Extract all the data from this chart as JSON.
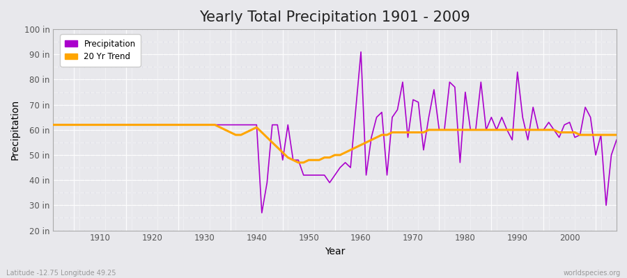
{
  "title": "Yearly Total Precipitation 1901 - 2009",
  "xlabel": "Year",
  "ylabel": "Precipitation",
  "ylim": [
    20,
    100
  ],
  "xlim": [
    1901,
    2009
  ],
  "ytick_labels": [
    "20 in",
    "30 in",
    "40 in",
    "50 in",
    "60 in",
    "70 in",
    "80 in",
    "90 in",
    "100 in"
  ],
  "ytick_values": [
    20,
    30,
    40,
    50,
    60,
    70,
    80,
    90,
    100
  ],
  "xtick_values": [
    1910,
    1920,
    1930,
    1940,
    1950,
    1960,
    1970,
    1980,
    1990,
    2000
  ],
  "precipitation_color": "#AA00CC",
  "trend_color": "#FFA500",
  "background_color": "#E8E8EC",
  "grid_color": "#FFFFFF",
  "precipitation_label": "Precipitation",
  "trend_label": "20 Yr Trend",
  "title_fontsize": 15,
  "axis_label_fontsize": 10,
  "watermark_left": "Latitude -12.75 Longitude 49.25",
  "watermark_right": "worldspecies.org",
  "years": [
    1901,
    1902,
    1903,
    1904,
    1905,
    1906,
    1907,
    1908,
    1909,
    1910,
    1911,
    1912,
    1913,
    1914,
    1915,
    1916,
    1917,
    1918,
    1919,
    1920,
    1921,
    1922,
    1923,
    1924,
    1925,
    1926,
    1927,
    1928,
    1929,
    1930,
    1931,
    1932,
    1933,
    1934,
    1935,
    1936,
    1937,
    1938,
    1939,
    1940,
    1941,
    1942,
    1943,
    1944,
    1945,
    1946,
    1947,
    1948,
    1949,
    1950,
    1951,
    1952,
    1953,
    1954,
    1955,
    1956,
    1957,
    1958,
    1959,
    1960,
    1961,
    1962,
    1963,
    1964,
    1965,
    1966,
    1967,
    1968,
    1969,
    1970,
    1971,
    1972,
    1973,
    1974,
    1975,
    1976,
    1977,
    1978,
    1979,
    1980,
    1981,
    1982,
    1983,
    1984,
    1985,
    1986,
    1987,
    1988,
    1989,
    1990,
    1991,
    1992,
    1993,
    1994,
    1995,
    1996,
    1997,
    1998,
    1999,
    2000,
    2001,
    2002,
    2003,
    2004,
    2005,
    2006,
    2007,
    2008,
    2009
  ],
  "precip_values": [
    62,
    62,
    62,
    62,
    62,
    62,
    62,
    62,
    62,
    62,
    62,
    62,
    62,
    62,
    62,
    62,
    62,
    62,
    62,
    62,
    62,
    62,
    62,
    62,
    62,
    62,
    62,
    62,
    62,
    62,
    62,
    62,
    62,
    62,
    62,
    62,
    62,
    62,
    62,
    62,
    27,
    39,
    62,
    62,
    48,
    62,
    48,
    48,
    42,
    42,
    42,
    42,
    42,
    39,
    42,
    45,
    47,
    45,
    68,
    91,
    42,
    57,
    65,
    67,
    42,
    65,
    68,
    79,
    57,
    72,
    71,
    52,
    65,
    76,
    60,
    60,
    79,
    77,
    47,
    75,
    60,
    60,
    79,
    60,
    65,
    60,
    65,
    60,
    56,
    83,
    65,
    56,
    69,
    60,
    60,
    63,
    60,
    57,
    62,
    63,
    57,
    58,
    69,
    65,
    50,
    58,
    30,
    50,
    56
  ],
  "trend_years": [
    1901,
    1902,
    1903,
    1904,
    1905,
    1906,
    1907,
    1908,
    1909,
    1910,
    1911,
    1912,
    1913,
    1914,
    1915,
    1916,
    1917,
    1918,
    1919,
    1920,
    1921,
    1922,
    1923,
    1924,
    1925,
    1926,
    1927,
    1928,
    1929,
    1930,
    1931,
    1932,
    1933,
    1934,
    1935,
    1936,
    1937,
    1938,
    1939,
    1940,
    1941,
    1942,
    1943,
    1944,
    1945,
    1946,
    1947,
    1948,
    1949,
    1950,
    1951,
    1952,
    1953,
    1954,
    1955,
    1956,
    1957,
    1958,
    1959,
    1960,
    1961,
    1962,
    1963,
    1964,
    1965,
    1966,
    1967,
    1968,
    1969,
    1970,
    1971,
    1972,
    1973,
    1974,
    1975,
    1976,
    1977,
    1978,
    1979,
    1980,
    1981,
    1982,
    1983,
    1984,
    1985,
    1986,
    1987,
    1988,
    1989,
    1990,
    1991,
    1992,
    1993,
    1994,
    1995,
    1996,
    1997,
    1998,
    1999,
    2000,
    2001,
    2002,
    2003,
    2004,
    2005,
    2006,
    2007,
    2008,
    2009
  ],
  "trend_values": [
    62,
    62,
    62,
    62,
    62,
    62,
    62,
    62,
    62,
    62,
    62,
    62,
    62,
    62,
    62,
    62,
    62,
    62,
    62,
    62,
    62,
    62,
    62,
    62,
    62,
    62,
    62,
    62,
    62,
    62,
    62,
    62,
    61,
    60,
    59,
    58,
    58,
    59,
    60,
    61,
    59,
    57,
    55,
    53,
    51,
    49,
    48,
    47,
    47,
    48,
    48,
    48,
    49,
    49,
    50,
    50,
    51,
    52,
    53,
    54,
    55,
    56,
    57,
    58,
    58,
    59,
    59,
    59,
    59,
    59,
    59,
    59,
    60,
    60,
    60,
    60,
    60,
    60,
    60,
    60,
    60,
    60,
    60,
    60,
    60,
    60,
    60,
    60,
    60,
    60,
    60,
    60,
    60,
    60,
    60,
    60,
    60,
    59,
    59,
    59,
    59,
    58,
    58,
    58,
    58,
    58,
    58,
    58,
    58
  ]
}
